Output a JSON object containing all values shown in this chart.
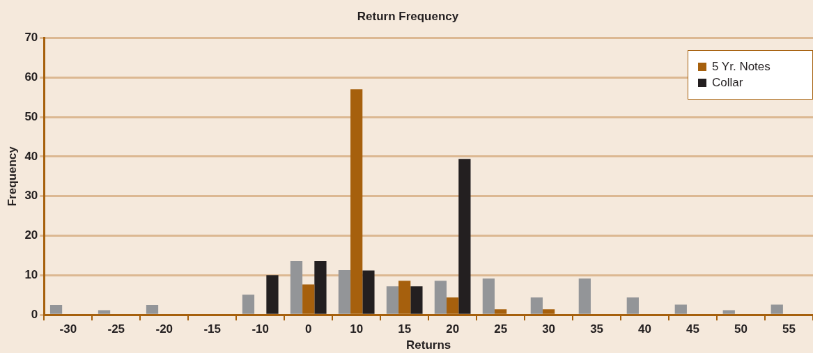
{
  "chart_data": {
    "type": "bar",
    "title": "Return Frequency",
    "xlabel": "Returns",
    "ylabel": "Frequency",
    "categories": [
      "-30",
      "-25",
      "-20",
      "-15",
      "-10",
      "0",
      "10",
      "15",
      "20",
      "25",
      "30",
      "35",
      "40",
      "45",
      "50",
      "55"
    ],
    "series": [
      {
        "color": "#939598",
        "values": [
          2.5,
          1.2,
          2.5,
          0,
          5.1,
          13.6,
          11.3,
          7.2,
          8.6,
          9.2,
          4.4,
          9.2,
          4.4,
          2.6,
          1.2,
          2.6
        ]
      },
      {
        "name": "5 Yr. Notes",
        "color": "#a6600d",
        "values": [
          0,
          0,
          0,
          0,
          0,
          7.7,
          57,
          8.6,
          4.4,
          1.4,
          1.4,
          0,
          0,
          0,
          0,
          0
        ]
      },
      {
        "name": "Collar",
        "color": "#231f20",
        "values": [
          0,
          0,
          0,
          0,
          10,
          13.6,
          11.2,
          7.2,
          39.4,
          0,
          0,
          0,
          0,
          0,
          0,
          0
        ]
      }
    ],
    "ylim": [
      0,
      70
    ],
    "yticks": [
      0,
      10,
      20,
      30,
      40,
      50,
      60,
      70
    ],
    "grid": "y",
    "legend": "top right"
  }
}
